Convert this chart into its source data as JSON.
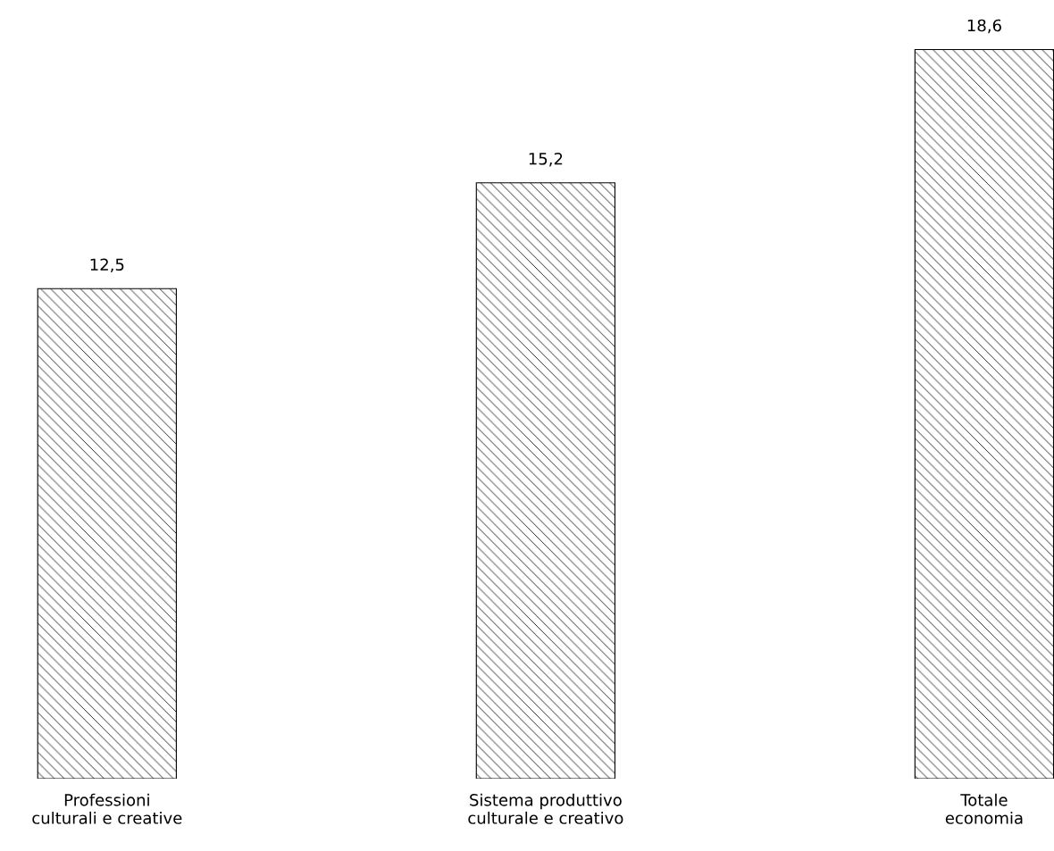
{
  "chart_data": {
    "type": "bar",
    "categories": [
      "Professioni\nculturali e creative",
      "Sistema produttivo\nculturale e creativo",
      "Totale\neconomia"
    ],
    "values": [
      12.5,
      15.2,
      18.6
    ],
    "value_labels": [
      "12,5",
      "15,2",
      "18,6"
    ],
    "color": "#000000",
    "grid": false
  }
}
